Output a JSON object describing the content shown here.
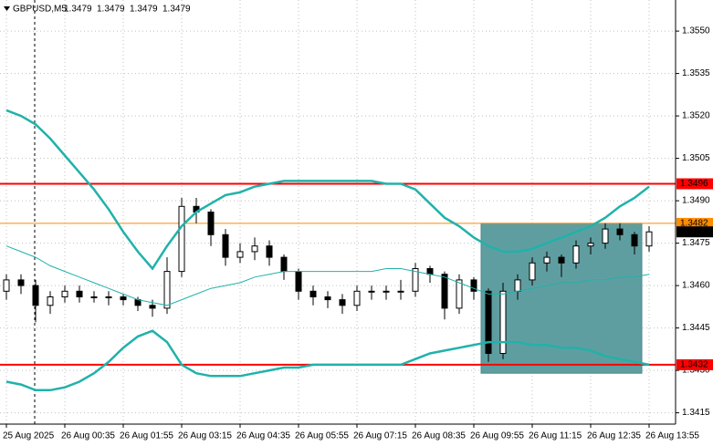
{
  "chart_data": {
    "type": "candlestick",
    "title": "GBPUSD,M5",
    "quote": [
      1.3479,
      1.3479,
      1.3479,
      1.3479
    ],
    "categories": [
      "25 Aug 2025",
      null,
      null,
      null,
      "26 Aug 00:35",
      null,
      null,
      null,
      "26 Aug 01:55",
      null,
      null,
      null,
      "26 Aug 03:15",
      null,
      null,
      null,
      "26 Aug 04:35",
      null,
      null,
      null,
      "26 Aug 05:55",
      null,
      null,
      null,
      "26 Aug 07:15",
      null,
      null,
      null,
      "26 Aug 08:35",
      null,
      null,
      null,
      "26 Aug 09:55",
      null,
      null,
      null,
      "26 Aug 11:15",
      null,
      null,
      null,
      "26 Aug 12:35",
      null,
      null,
      null,
      "26 Aug 13:55"
    ],
    "candles": [
      [
        1.3458,
        1.3464,
        1.3455,
        1.3462
      ],
      [
        1.3462,
        1.3464,
        1.3457,
        1.346
      ],
      [
        1.346,
        1.3462,
        1.3447,
        1.3453
      ],
      [
        1.3453,
        1.3458,
        1.345,
        1.3456
      ],
      [
        1.3456,
        1.346,
        1.3454,
        1.3458
      ],
      [
        1.3458,
        1.346,
        1.3454,
        1.3456
      ],
      [
        1.3456,
        1.3458,
        1.3454,
        1.3456
      ],
      [
        1.3456,
        1.3458,
        1.3453,
        1.3456
      ],
      [
        1.3456,
        1.3457,
        1.3453,
        1.3455
      ],
      [
        1.3455,
        1.3456,
        1.3451,
        1.3453
      ],
      [
        1.3453,
        1.3455,
        1.3449,
        1.3452
      ],
      [
        1.3452,
        1.347,
        1.345,
        1.3465
      ],
      [
        1.3465,
        1.3491,
        1.3463,
        1.3488
      ],
      [
        1.3488,
        1.3491,
        1.3482,
        1.3486
      ],
      [
        1.3486,
        1.3487,
        1.3474,
        1.3478
      ],
      [
        1.3478,
        1.348,
        1.3467,
        1.347
      ],
      [
        1.347,
        1.3475,
        1.3468,
        1.3472
      ],
      [
        1.3472,
        1.3477,
        1.3469,
        1.3474
      ],
      [
        1.3474,
        1.3476,
        1.3467,
        1.347
      ],
      [
        1.347,
        1.3471,
        1.3462,
        1.3465
      ],
      [
        1.3465,
        1.3466,
        1.3455,
        1.3458
      ],
      [
        1.3458,
        1.346,
        1.3453,
        1.3456
      ],
      [
        1.3456,
        1.3458,
        1.3452,
        1.3455
      ],
      [
        1.3455,
        1.3457,
        1.345,
        1.3453
      ],
      [
        1.3453,
        1.346,
        1.3451,
        1.3458
      ],
      [
        1.3458,
        1.346,
        1.3455,
        1.3458
      ],
      [
        1.3458,
        1.346,
        1.3455,
        1.3458
      ],
      [
        1.3458,
        1.3462,
        1.3455,
        1.3458
      ],
      [
        1.3458,
        1.3468,
        1.3456,
        1.3466
      ],
      [
        1.3466,
        1.3467,
        1.3461,
        1.3464
      ],
      [
        1.3464,
        1.3465,
        1.3448,
        1.3452
      ],
      [
        1.3452,
        1.3464,
        1.345,
        1.3462
      ],
      [
        1.3462,
        1.3463,
        1.3455,
        1.3458
      ],
      [
        1.3458,
        1.3459,
        1.3433,
        1.3436
      ],
      [
        1.3436,
        1.3461,
        1.3434,
        1.3458
      ],
      [
        1.3458,
        1.3464,
        1.3455,
        1.3462
      ],
      [
        1.3462,
        1.347,
        1.346,
        1.3468
      ],
      [
        1.3468,
        1.3472,
        1.3465,
        1.347
      ],
      [
        1.347,
        1.3471,
        1.3463,
        1.3468
      ],
      [
        1.3468,
        1.3476,
        1.3466,
        1.3474
      ],
      [
        1.3474,
        1.3477,
        1.3471,
        1.3475
      ],
      [
        1.3475,
        1.3482,
        1.3473,
        1.348
      ],
      [
        1.348,
        1.3482,
        1.3476,
        1.3478
      ],
      [
        1.3478,
        1.3479,
        1.3471,
        1.3474
      ],
      [
        1.3474,
        1.3481,
        1.3472,
        1.3479
      ]
    ],
    "candle_color": "#000000",
    "series": [
      {
        "color": "#20b2aa",
        "width": 2.5,
        "values": [
          1.3522,
          1.352,
          1.3517,
          1.3512,
          1.3506,
          1.35,
          1.3494,
          1.3487,
          1.3479,
          1.3472,
          1.3466,
          1.3474,
          1.3481,
          1.3486,
          1.3489,
          1.3492,
          1.3493,
          1.3495,
          1.3496,
          1.3497,
          1.3497,
          1.3497,
          1.3497,
          1.3497,
          1.3497,
          1.3497,
          1.3496,
          1.3496,
          1.3494,
          1.3489,
          1.3484,
          1.3481,
          1.3477,
          1.3474,
          1.3472,
          1.3472,
          1.3473,
          1.3475,
          1.3477,
          1.3479,
          1.3481,
          1.3484,
          1.3488,
          1.3491,
          1.3495
        ]
      },
      {
        "color": "#20b2aa",
        "width": 1,
        "values": [
          1.3474,
          1.3472,
          1.347,
          1.3467,
          1.3465,
          1.3463,
          1.3461,
          1.3459,
          1.3457,
          1.3455,
          1.3454,
          1.3453,
          1.3455,
          1.3457,
          1.3459,
          1.346,
          1.3461,
          1.3463,
          1.3464,
          1.3465,
          1.3465,
          1.3465,
          1.3465,
          1.3465,
          1.3465,
          1.3465,
          1.3466,
          1.3466,
          1.3465,
          1.3464,
          1.3463,
          1.3461,
          1.3459,
          1.3457,
          1.3457,
          1.3458,
          1.3459,
          1.346,
          1.3461,
          1.3461,
          1.3462,
          1.3462,
          1.3463,
          1.3463,
          1.3464
        ]
      },
      {
        "color": "#20b2aa",
        "width": 2.5,
        "values": [
          1.3426,
          1.3425,
          1.3423,
          1.3423,
          1.3424,
          1.3426,
          1.3429,
          1.3433,
          1.3438,
          1.3442,
          1.3444,
          1.344,
          1.3432,
          1.3429,
          1.3428,
          1.3428,
          1.3428,
          1.3429,
          1.343,
          1.3431,
          1.3431,
          1.3432,
          1.3432,
          1.3432,
          1.3432,
          1.3432,
          1.3432,
          1.3432,
          1.3434,
          1.3436,
          1.3437,
          1.3438,
          1.3439,
          1.344,
          1.344,
          1.344,
          1.3439,
          1.3439,
          1.3438,
          1.3438,
          1.3437,
          1.3435,
          1.3434,
          1.3433,
          1.3432
        ]
      }
    ],
    "hlines": [
      {
        "value": 1.3496,
        "color": "#ff0000",
        "width": 2
      },
      {
        "value": 1.3482,
        "color": "#ff8c00",
        "width": 1
      },
      {
        "value": 1.3432,
        "color": "#ff0000",
        "width": 2
      }
    ],
    "box": {
      "from": 33,
      "to": 43,
      "top": 1.3482,
      "bottom": 1.3429,
      "color": "#5f9ea0"
    },
    "ylim": [
      1.3411,
      1.3561
    ],
    "yticks": [
      {
        "value": 1.355,
        "label": "1.3550"
      },
      1.3535,
      {
        "value": 1.352,
        "label": "1.3520"
      },
      1.3505,
      {
        "value": 1.349,
        "label": "1.3490"
      },
      1.3475,
      {
        "value": 1.346,
        "label": "1.3460"
      },
      1.3445,
      {
        "value": 1.343,
        "label": "1.3430"
      },
      1.3415
    ],
    "grid": true
  }
}
